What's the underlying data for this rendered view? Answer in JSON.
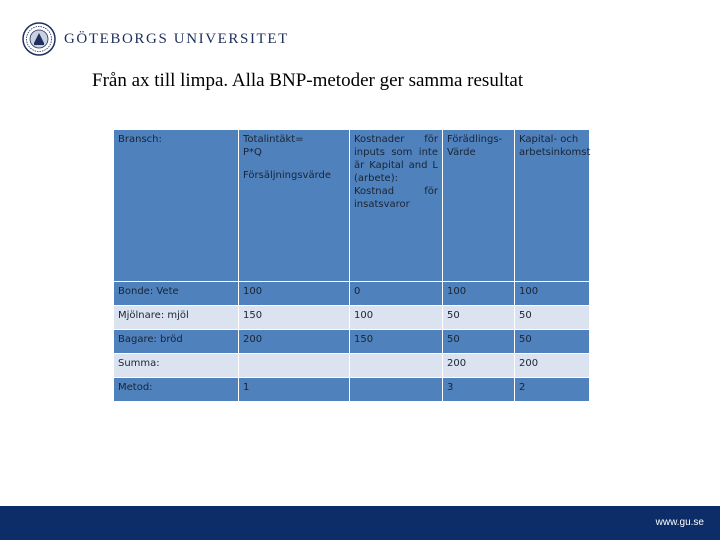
{
  "header": {
    "university_name": "GÖTEBORGS UNIVERSITET",
    "logo_icon": "university-seal-icon"
  },
  "slide": {
    "title": "Från ax till limpa. Alla BNP-metoder ger samma resultat"
  },
  "table": {
    "columns": [
      {
        "line1": "Bransch:",
        "line2": "",
        "line3": ""
      },
      {
        "line1": "Totalintäkt=",
        "line2": "P*Q",
        "line3": "Försäljningsvärde"
      },
      {
        "line1": "Kostnader för inputs som inte är Kapital and L (arbete): Kostnad för insatsvaror",
        "line2": "",
        "line3": ""
      },
      {
        "line1": "Förädlings-Värde",
        "line2": "",
        "line3": ""
      },
      {
        "line1": "Kapital- och arbetsinkomst",
        "line2": "",
        "line3": ""
      }
    ],
    "rows": [
      [
        "Bonde: Vete",
        "100",
        "0",
        "100",
        "100"
      ],
      [
        "Mjölnare: mjöl",
        "150",
        "100",
        "50",
        "50"
      ],
      [
        "Bagare: bröd",
        "200",
        "150",
        "50",
        "50"
      ],
      [
        "Summa:",
        "",
        "",
        "200",
        "200"
      ],
      [
        "Metod:",
        "1",
        "",
        "3",
        "2"
      ]
    ]
  },
  "footer": {
    "url": "www.gu.se"
  },
  "colors": {
    "table_dark": "#4f81bd",
    "table_light": "#dbe3f0",
    "footer_bar": "#0d2d69"
  }
}
